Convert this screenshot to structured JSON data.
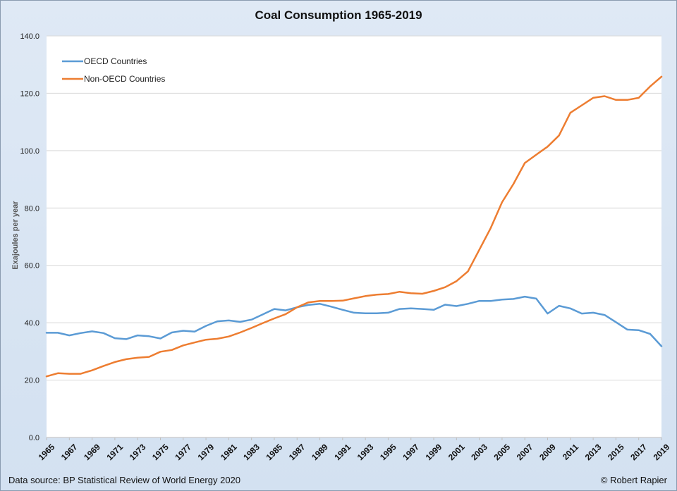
{
  "footer": {
    "source": "Data source: BP Statistical Review of World Energy 2020",
    "credit": "© Robert Rapier"
  },
  "chart_data": {
    "type": "line",
    "title": "Coal Consumption 1965-2019",
    "xlabel": "",
    "ylabel": "Exajoules per year",
    "ylim": [
      0,
      140
    ],
    "yticks": [
      "0.0",
      "20.0",
      "40.0",
      "60.0",
      "80.0",
      "100.0",
      "120.0",
      "140.0"
    ],
    "x": [
      1965,
      1966,
      1967,
      1968,
      1969,
      1970,
      1971,
      1972,
      1973,
      1974,
      1975,
      1976,
      1977,
      1978,
      1979,
      1980,
      1981,
      1982,
      1983,
      1984,
      1985,
      1986,
      1987,
      1988,
      1989,
      1990,
      1991,
      1992,
      1993,
      1994,
      1995,
      1996,
      1997,
      1998,
      1999,
      2000,
      2001,
      2002,
      2003,
      2004,
      2005,
      2006,
      2007,
      2008,
      2009,
      2010,
      2011,
      2012,
      2013,
      2014,
      2015,
      2016,
      2017,
      2018,
      2019
    ],
    "xtick_labels": [
      "1965",
      "1967",
      "1969",
      "1971",
      "1973",
      "1975",
      "1977",
      "1979",
      "1981",
      "1983",
      "1985",
      "1987",
      "1989",
      "1991",
      "1993",
      "1995",
      "1997",
      "1999",
      "2001",
      "2003",
      "2005",
      "2007",
      "2009",
      "2011",
      "2013",
      "2015",
      "2017",
      "2019"
    ],
    "grid": true,
    "legend_position": "top-left",
    "series": [
      {
        "name": "OECD Countries",
        "color": "#5b9bd5",
        "values": [
          36.5,
          36.5,
          35.6,
          36.4,
          37.0,
          36.4,
          34.6,
          34.3,
          35.6,
          35.3,
          34.5,
          36.6,
          37.2,
          36.9,
          38.9,
          40.5,
          40.8,
          40.3,
          41.1,
          42.9,
          44.8,
          44.3,
          45.4,
          46.2,
          46.6,
          45.6,
          44.5,
          43.5,
          43.3,
          43.3,
          43.5,
          44.8,
          45.0,
          44.8,
          44.5,
          46.3,
          45.8,
          46.6,
          47.6,
          47.6,
          48.1,
          48.3,
          49.1,
          48.4,
          43.2,
          45.9,
          45.0,
          43.2,
          43.5,
          42.7,
          40.2,
          37.6,
          37.4,
          36.1,
          31.8
        ]
      },
      {
        "name": "Non-OECD Countries",
        "color": "#ed7d31",
        "values": [
          21.3,
          22.4,
          22.2,
          22.2,
          23.4,
          24.9,
          26.3,
          27.3,
          27.8,
          28.1,
          29.9,
          30.5,
          32.1,
          33.1,
          34.1,
          34.4,
          35.2,
          36.6,
          38.2,
          39.9,
          41.5,
          43.0,
          45.4,
          47.1,
          47.6,
          47.6,
          47.7,
          48.5,
          49.3,
          49.8,
          50.0,
          50.8,
          50.3,
          50.1,
          51.1,
          52.4,
          54.5,
          57.9,
          65.4,
          73.0,
          82.0,
          88.4,
          95.7,
          98.6,
          101.4,
          105.3,
          113.2,
          115.8,
          118.4,
          119.0,
          117.7,
          117.7,
          118.4,
          122.4,
          125.8
        ]
      }
    ]
  }
}
